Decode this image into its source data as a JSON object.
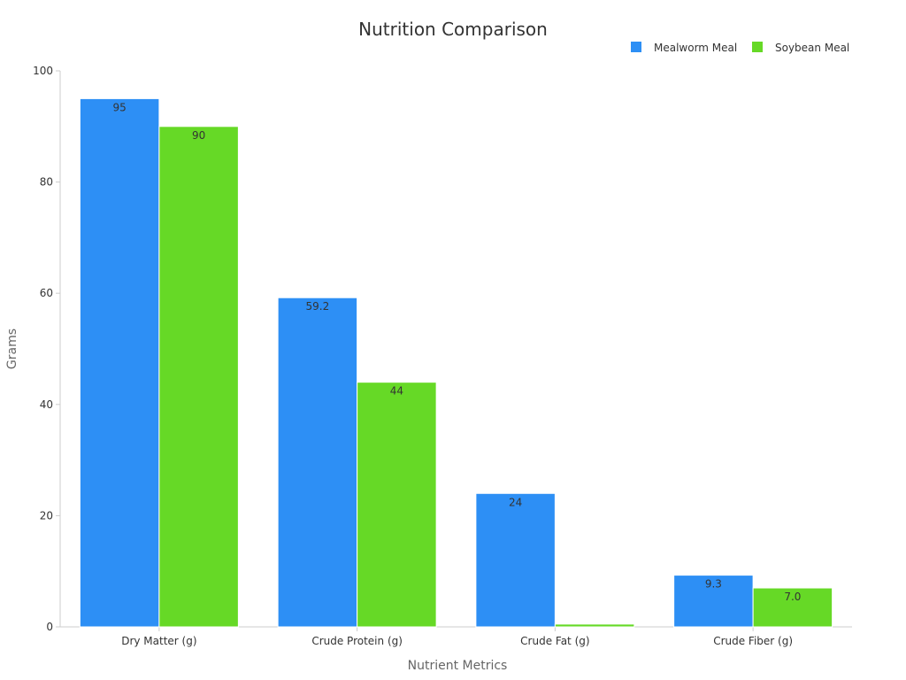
{
  "chart_data": {
    "type": "bar",
    "title": "Nutrition Comparison",
    "xlabel": "Nutrient Metrics",
    "ylabel": "Grams",
    "categories": [
      "Dry Matter (g)",
      "Crude Protein (g)",
      "Crude Fat (g)",
      "Crude Fiber (g)"
    ],
    "series": [
      {
        "name": "Mealworm Meal",
        "color": "#2d8ff5",
        "values": [
          95,
          59.2,
          24,
          9.3
        ],
        "labels": [
          "95",
          "59.2",
          "24",
          "9.3"
        ]
      },
      {
        "name": "Soybean Meal",
        "color": "#66d926",
        "values": [
          90,
          44,
          0.5,
          7.0
        ],
        "labels": [
          "90",
          "44",
          "",
          "7.0"
        ]
      }
    ],
    "ylim": [
      0,
      100
    ],
    "yticks": [
      0,
      20,
      40,
      60,
      80,
      100
    ],
    "grid": false,
    "legend": "top-right"
  }
}
